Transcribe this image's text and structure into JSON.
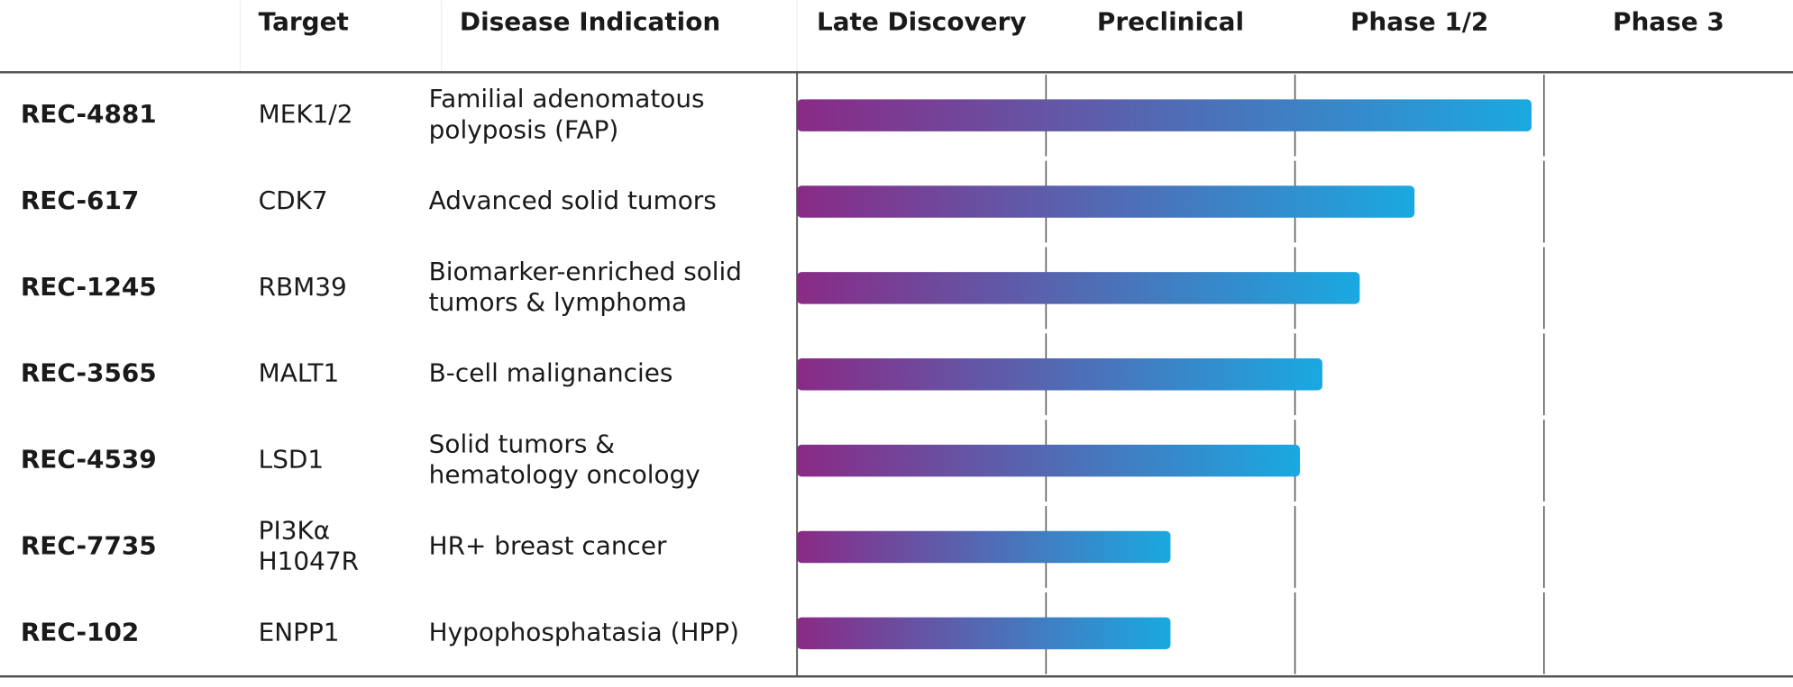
{
  "chart_data": {
    "type": "bar",
    "orientation": "horizontal",
    "headers": {
      "target": "Target",
      "indication": "Disease Indication"
    },
    "stages": [
      "Late Discovery",
      "Preclinical",
      "Phase 1/2",
      "Phase 3"
    ],
    "categories": [
      "REC-4881",
      "REC-617",
      "REC-1245",
      "REC-3565",
      "REC-4539",
      "REC-7735",
      "REC-102"
    ],
    "targets": [
      [
        "MEK1/2"
      ],
      [
        "CDK7"
      ],
      [
        "RBM39"
      ],
      [
        "MALT1"
      ],
      [
        "LSD1"
      ],
      [
        "PI3Kα",
        "H1047R"
      ],
      [
        "ENPP1"
      ]
    ],
    "indications": [
      [
        "Familial adenomatous",
        "polyposis (FAP)"
      ],
      [
        "Advanced solid tumors"
      ],
      [
        "Biomarker-enriched solid",
        "tumors & lymphoma"
      ],
      [
        "B-cell malignancies"
      ],
      [
        "Solid tumors &",
        "hematology oncology"
      ],
      [
        "HR+ breast cancer"
      ],
      [
        "Hypophosphatasia (HPP)"
      ]
    ],
    "values": [
      2.95,
      2.48,
      2.26,
      2.11,
      2.02,
      1.5,
      1.5
    ],
    "xlim": [
      0,
      4
    ],
    "colors": [
      "#8a2a86",
      "#1aa9e1"
    ]
  }
}
